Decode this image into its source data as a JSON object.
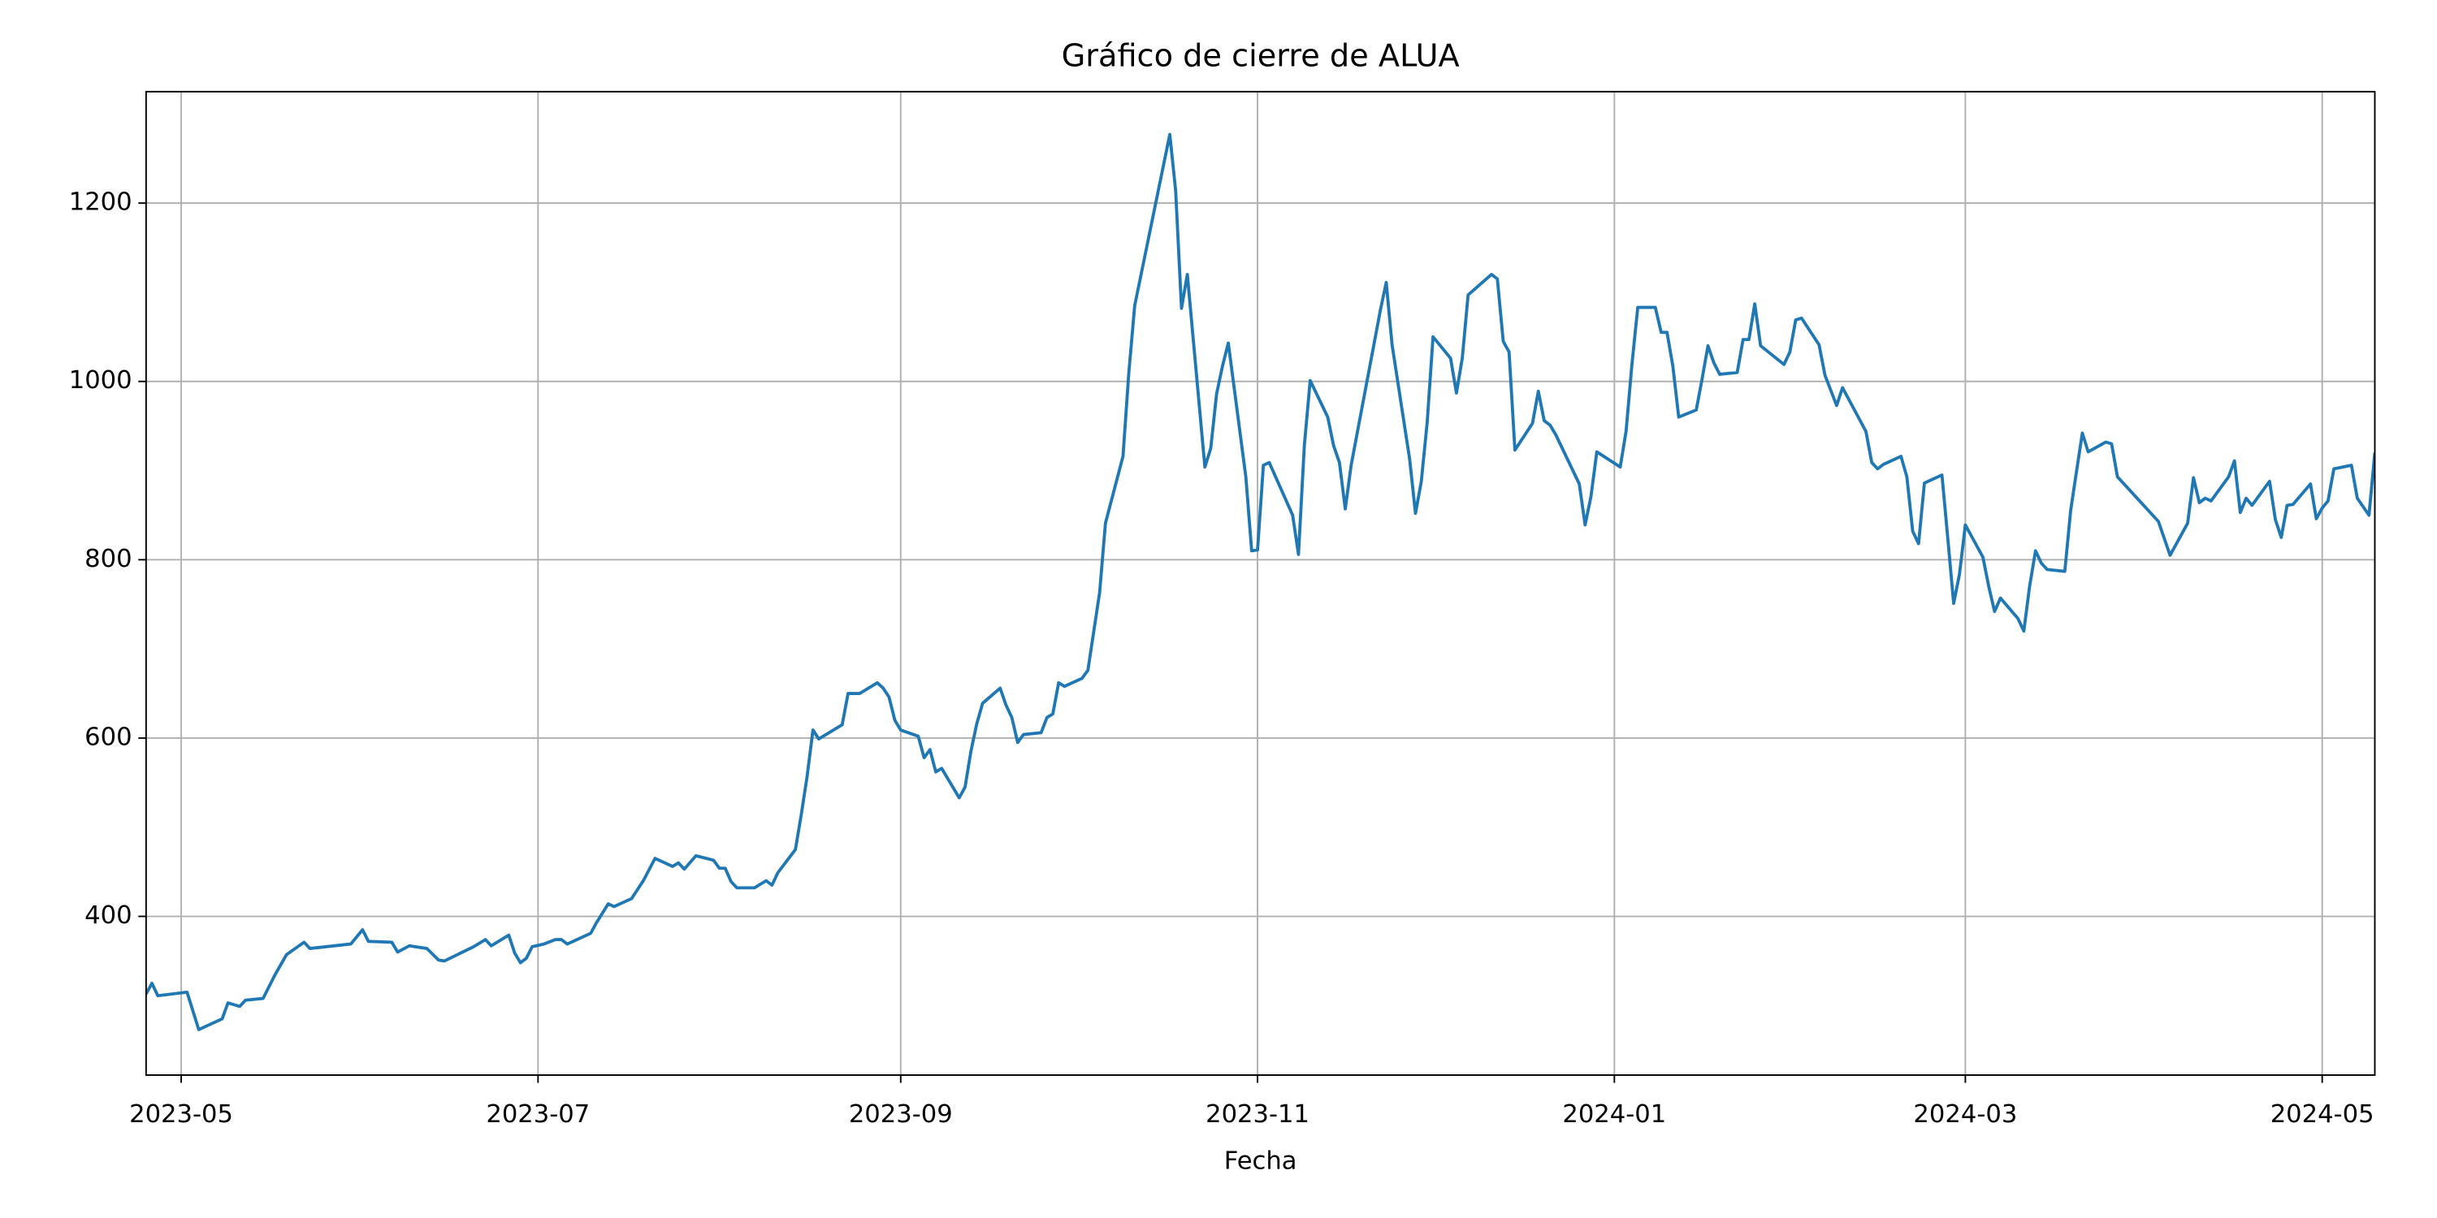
{
  "chart_data": {
    "type": "line",
    "title": "Gráfico de cierre de ALUA",
    "x_label": "Fecha",
    "xlim": [
      "2023-04-25",
      "2024-05-10"
    ],
    "ylim": [
      222,
      1325
    ],
    "xticks": [
      {
        "value": "2023-05-01",
        "label": "2023-05"
      },
      {
        "value": "2023-07-01",
        "label": "2023-07"
      },
      {
        "value": "2023-09-01",
        "label": "2023-09"
      },
      {
        "value": "2023-11-01",
        "label": "2023-11"
      },
      {
        "value": "2024-01-01",
        "label": "2024-01"
      },
      {
        "value": "2024-03-01",
        "label": "2024-03"
      },
      {
        "value": "2024-05-01",
        "label": "2024-05"
      }
    ],
    "yticks": [
      400,
      600,
      800,
      1000,
      1200
    ],
    "grid": true,
    "x": [
      "2023-04-25",
      "2023-04-26",
      "2023-04-27",
      "2023-05-02",
      "2023-05-04",
      "2023-05-08",
      "2023-05-09",
      "2023-05-11",
      "2023-05-12",
      "2023-05-15",
      "2023-05-17",
      "2023-05-19",
      "2023-05-22",
      "2023-05-23",
      "2023-05-30",
      "2023-06-01",
      "2023-06-02",
      "2023-06-06",
      "2023-06-07",
      "2023-06-09",
      "2023-06-12",
      "2023-06-14",
      "2023-06-15",
      "2023-06-20",
      "2023-06-22",
      "2023-06-23",
      "2023-06-26",
      "2023-06-27",
      "2023-06-28",
      "2023-06-29",
      "2023-06-30",
      "2023-07-02",
      "2023-07-04",
      "2023-07-05",
      "2023-07-06",
      "2023-07-10",
      "2023-07-11",
      "2023-07-13",
      "2023-07-14",
      "2023-07-17",
      "2023-07-19",
      "2023-07-21",
      "2023-07-24",
      "2023-07-25",
      "2023-07-26",
      "2023-07-28",
      "2023-07-31",
      "2023-08-01",
      "2023-08-02",
      "2023-08-03",
      "2023-08-04",
      "2023-08-07",
      "2023-08-09",
      "2023-08-10",
      "2023-08-11",
      "2023-08-14",
      "2023-08-15",
      "2023-08-16",
      "2023-08-17",
      "2023-08-18",
      "2023-08-22",
      "2023-08-23",
      "2023-08-25",
      "2023-08-28",
      "2023-08-29",
      "2023-08-30",
      "2023-08-31",
      "2023-09-01",
      "2023-09-04",
      "2023-09-05",
      "2023-09-06",
      "2023-09-07",
      "2023-09-08",
      "2023-09-11",
      "2023-09-12",
      "2023-09-13",
      "2023-09-14",
      "2023-09-15",
      "2023-09-18",
      "2023-09-19",
      "2023-09-20",
      "2023-09-21",
      "2023-09-22",
      "2023-09-25",
      "2023-09-26",
      "2023-09-27",
      "2023-09-28",
      "2023-09-29",
      "2023-10-02",
      "2023-10-03",
      "2023-10-05",
      "2023-10-06",
      "2023-10-09",
      "2023-10-10",
      "2023-10-11",
      "2023-10-17",
      "2023-10-18",
      "2023-10-19",
      "2023-10-20",
      "2023-10-23",
      "2023-10-24",
      "2023-10-25",
      "2023-10-26",
      "2023-10-27",
      "2023-10-30",
      "2023-10-31",
      "2023-11-01",
      "2023-11-02",
      "2023-11-03",
      "2023-11-07",
      "2023-11-08",
      "2023-11-09",
      "2023-11-10",
      "2023-11-13",
      "2023-11-14",
      "2023-11-15",
      "2023-11-16",
      "2023-11-17",
      "2023-11-21",
      "2023-11-22",
      "2023-11-23",
      "2023-11-24",
      "2023-11-27",
      "2023-11-28",
      "2023-11-29",
      "2023-11-30",
      "2023-12-01",
      "2023-12-04",
      "2023-12-05",
      "2023-12-06",
      "2023-12-07",
      "2023-12-11",
      "2023-12-12",
      "2023-12-13",
      "2023-12-14",
      "2023-12-15",
      "2023-12-18",
      "2023-12-19",
      "2023-12-20",
      "2023-12-21",
      "2023-12-22",
      "2023-12-26",
      "2023-12-27",
      "2023-12-28",
      "2023-12-29",
      "2024-01-02",
      "2024-01-03",
      "2024-01-04",
      "2024-01-05",
      "2024-01-08",
      "2024-01-09",
      "2024-01-10",
      "2024-01-11",
      "2024-01-12",
      "2024-01-15",
      "2024-01-16",
      "2024-01-17",
      "2024-01-18",
      "2024-01-19",
      "2024-01-22",
      "2024-01-23",
      "2024-01-24",
      "2024-01-25",
      "2024-01-26",
      "2024-01-30",
      "2024-01-31",
      "2024-02-01",
      "2024-02-02",
      "2024-02-05",
      "2024-02-06",
      "2024-02-08",
      "2024-02-09",
      "2024-02-13",
      "2024-02-14",
      "2024-02-15",
      "2024-02-16",
      "2024-02-19",
      "2024-02-20",
      "2024-02-21",
      "2024-02-22",
      "2024-02-23",
      "2024-02-26",
      "2024-02-27",
      "2024-02-28",
      "2024-02-29",
      "2024-03-01",
      "2024-03-04",
      "2024-03-05",
      "2024-03-06",
      "2024-03-07",
      "2024-03-10",
      "2024-03-11",
      "2024-03-12",
      "2024-03-13",
      "2024-03-14",
      "2024-03-15",
      "2024-03-18",
      "2024-03-19",
      "2024-03-20",
      "2024-03-21",
      "2024-03-22",
      "2024-03-25",
      "2024-03-26",
      "2024-03-27",
      "2024-04-03",
      "2024-04-05",
      "2024-04-08",
      "2024-04-09",
      "2024-04-10",
      "2024-04-11",
      "2024-04-12",
      "2024-04-15",
      "2024-04-16",
      "2024-04-17",
      "2024-04-18",
      "2024-04-19",
      "2024-04-22",
      "2024-04-23",
      "2024-04-24",
      "2024-04-25",
      "2024-04-26",
      "2024-04-29",
      "2024-04-30",
      "2024-05-01",
      "2024-05-02",
      "2024-05-03",
      "2024-05-06",
      "2024-05-07",
      "2024-05-09",
      "2024-05-10"
    ],
    "series": [
      {
        "color": "#1f77b4",
        "values": [
          313,
          325,
          311,
          315,
          273,
          285,
          303,
          299,
          306,
          308,
          334,
          357,
          371,
          364,
          369,
          385,
          372,
          371,
          360,
          367,
          364,
          351,
          350,
          366,
          374,
          367,
          379,
          359,
          348,
          353,
          366,
          369,
          374,
          374,
          369,
          381,
          393,
          414,
          411,
          420,
          440,
          465,
          456,
          460,
          453,
          468,
          463,
          454,
          454,
          439,
          432,
          432,
          440,
          435,
          449,
          475,
          514,
          557,
          609,
          599,
          615,
          650,
          650,
          662,
          656,
          646,
          620,
          609,
          602,
          578,
          587,
          562,
          566,
          533,
          545,
          585,
          616,
          639,
          656,
          637,
          623,
          595,
          604,
          606,
          623,
          627,
          662,
          658,
          667,
          676,
          763,
          841,
          916,
          1010,
          1085,
          1277,
          1214,
          1082,
          1120,
          904,
          925,
          986,
          1017,
          1043,
          893,
          810,
          811,
          906,
          909,
          850,
          806,
          928,
          1001,
          960,
          928,
          909,
          857,
          906,
          1045,
          1080,
          1111,
          1041,
          913,
          852,
          888,
          954,
          1050,
          1026,
          987,
          1026,
          1097,
          1120,
          1115,
          1045,
          1033,
          923,
          953,
          989,
          956,
          951,
          940,
          885,
          839,
          871,
          921,
          904,
          944,
          1019,
          1083,
          1083,
          1055,
          1055,
          1017,
          960,
          968,
          1003,
          1040,
          1021,
          1008,
          1010,
          1047,
          1047,
          1087,
          1040,
          1019,
          1033,
          1069,
          1071,
          1041,
          1007,
          973,
          993,
          944,
          909,
          902,
          907,
          916,
          893,
          832,
          818,
          886,
          895,
          824,
          751,
          784,
          839,
          803,
          770,
          742,
          757,
          734,
          720,
          771,
          810,
          796,
          789,
          787,
          855,
          899,
          942,
          921,
          932,
          930,
          893,
          843,
          805,
          841,
          892,
          864,
          869,
          866,
          893,
          911,
          853,
          869,
          861,
          888,
          845,
          825,
          861,
          862,
          885,
          846,
          858,
          866,
          902,
          906,
          869,
          850,
          920
        ]
      }
    ]
  }
}
